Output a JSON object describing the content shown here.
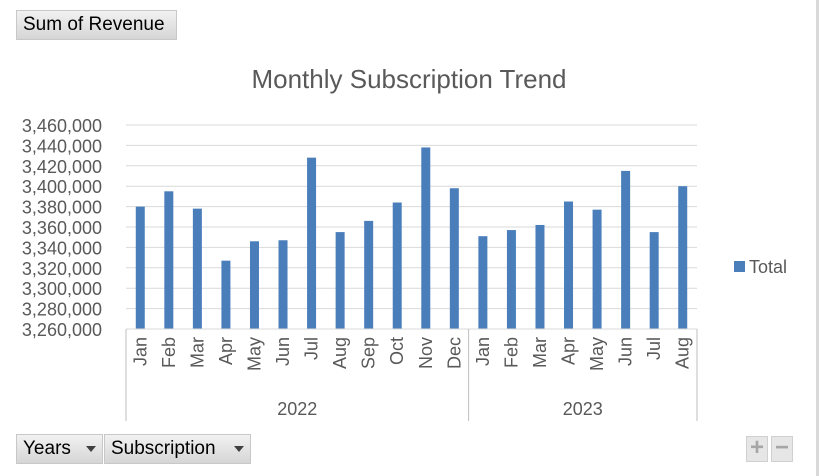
{
  "pivot": {
    "value_field": "Sum of Revenue",
    "row_fields": [
      "Years",
      "Subscription"
    ],
    "expand_label": "+",
    "collapse_label": "−"
  },
  "colors": {
    "bar": "#4a7ebb",
    "grid": "#d9d9d9",
    "text": "#595959"
  },
  "chart_data": {
    "type": "bar",
    "title": "Monthly Subscription Trend",
    "xlabel": "",
    "ylabel": "",
    "ylim": [
      3260000,
      3460000
    ],
    "ytick_step": 20000,
    "yticks": [
      "3,260,000",
      "3,280,000",
      "3,300,000",
      "3,320,000",
      "3,340,000",
      "3,360,000",
      "3,380,000",
      "3,400,000",
      "3,420,000",
      "3,440,000",
      "3,460,000"
    ],
    "grid": true,
    "legend_position": "right",
    "groups": [
      {
        "label": "2022",
        "categories": [
          "Jan",
          "Feb",
          "Mar",
          "Apr",
          "May",
          "Jun",
          "Jul",
          "Aug",
          "Sep",
          "Oct",
          "Nov",
          "Dec"
        ]
      },
      {
        "label": "2023",
        "categories": [
          "Jan",
          "Feb",
          "Mar",
          "Apr",
          "May",
          "Jun",
          "Jul",
          "Aug"
        ]
      }
    ],
    "series": [
      {
        "name": "Total",
        "values": [
          3380000,
          3395000,
          3378000,
          3327000,
          3346000,
          3347000,
          3428000,
          3355000,
          3366000,
          3384000,
          3438000,
          3398000,
          3351000,
          3357000,
          3362000,
          3385000,
          3377000,
          3415000,
          3355000,
          3400000
        ]
      }
    ]
  }
}
